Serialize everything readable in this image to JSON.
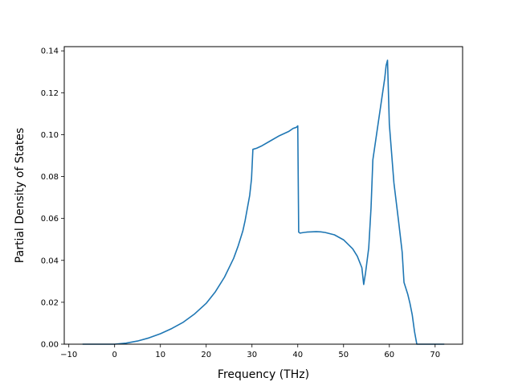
{
  "chart_data": {
    "type": "line",
    "title": "",
    "xlabel": "Frequency (THz)",
    "ylabel": "Partial Density of States",
    "xlim": [
      -11,
      76
    ],
    "ylim": [
      0,
      0.142
    ],
    "xticks": [
      -10,
      0,
      10,
      20,
      30,
      40,
      50,
      60,
      70
    ],
    "xtick_labels": [
      "−10",
      "0",
      "10",
      "20",
      "30",
      "40",
      "50",
      "60",
      "70"
    ],
    "yticks": [
      0,
      0.02,
      0.04,
      0.06,
      0.08,
      0.1,
      0.12,
      0.14
    ],
    "ytick_labels": [
      "0.00",
      "0.02",
      "0.04",
      "0.06",
      "0.08",
      "0.10",
      "0.12",
      "0.14"
    ],
    "grid": false,
    "legend": "none",
    "line_color": "#1f77b4",
    "series": [
      {
        "x": [
          -7,
          -5,
          0,
          2.5,
          5,
          7.5,
          10,
          12.5,
          15,
          17.5,
          20,
          22,
          24,
          26,
          27,
          28,
          28.5,
          29,
          29.5,
          29.9,
          30.2,
          31,
          32,
          34,
          36,
          38,
          39,
          39.7,
          40,
          40.2,
          40.5,
          41,
          42,
          44,
          45,
          46,
          48,
          50,
          52,
          53,
          54,
          54.4,
          54.8,
          55.5,
          56,
          56.4,
          57,
          58,
          59,
          59.3,
          59.6,
          60,
          61,
          62,
          62.8,
          63.2,
          64,
          64.5,
          65,
          65.5,
          66,
          70,
          72
        ],
        "y": [
          0,
          0,
          0,
          0.0005,
          0.0015,
          0.003,
          0.005,
          0.0075,
          0.0105,
          0.0145,
          0.0195,
          0.025,
          0.032,
          0.041,
          0.047,
          0.054,
          0.059,
          0.065,
          0.071,
          0.079,
          0.093,
          0.0935,
          0.0945,
          0.097,
          0.0995,
          0.1015,
          0.103,
          0.1035,
          0.1042,
          0.0535,
          0.053,
          0.0532,
          0.0535,
          0.0537,
          0.0536,
          0.0533,
          0.0522,
          0.0498,
          0.0455,
          0.042,
          0.0365,
          0.0285,
          0.034,
          0.046,
          0.065,
          0.088,
          0.097,
          0.112,
          0.127,
          0.133,
          0.1355,
          0.105,
          0.077,
          0.059,
          0.044,
          0.0295,
          0.024,
          0.0195,
          0.014,
          0.006,
          0,
          0,
          0
        ]
      }
    ]
  }
}
